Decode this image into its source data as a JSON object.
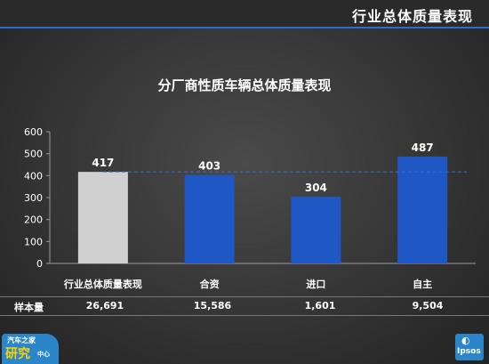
{
  "header": {
    "title": "行业总体质量表现"
  },
  "chart_data": {
    "type": "bar",
    "title": "分厂商性质车辆总体质量表现",
    "categories": [
      "行业总体质量表现",
      "合资",
      "进口",
      "自主"
    ],
    "values": [
      417,
      403,
      304,
      487
    ],
    "ylim": [
      0,
      600
    ],
    "yticks": [
      0,
      100,
      200,
      300,
      400,
      500,
      600
    ],
    "reference_line": 417,
    "grid": false,
    "colors": {
      "industry": "#d0d0d0",
      "segment": "#1f57c4",
      "reference": "#3a6fc7"
    }
  },
  "sample_table": {
    "label": "样本量",
    "values": [
      "26,691",
      "15,586",
      "1,601",
      "9,504"
    ]
  },
  "logos": {
    "left": {
      "line1": "汽车之家",
      "line2": "研究",
      "line3": "中心"
    },
    "right": {
      "text": "Ipsos"
    }
  }
}
